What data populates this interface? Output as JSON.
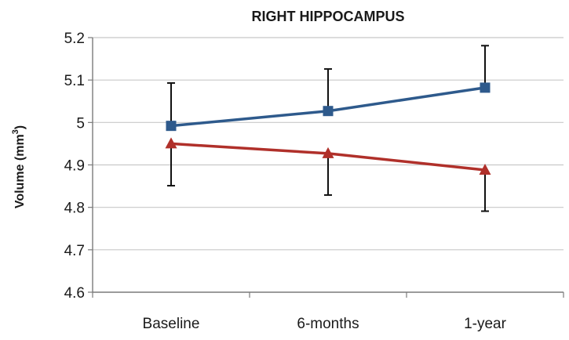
{
  "chart_data": {
    "type": "line",
    "title": "RIGHT HIPPOCAMPUS",
    "ylabel_text": "Volume (mm",
    "ylabel_superscript": "3",
    "ylabel_suffix": ")",
    "xlabel": "",
    "categories": [
      "Baseline",
      "6-months",
      "1-year"
    ],
    "ylim": [
      4.6,
      5.2
    ],
    "y_ticks": [
      4.6,
      4.7,
      4.8,
      4.9,
      5.0,
      5.1,
      5.2
    ],
    "y_tick_labels": [
      "4.6",
      "4.7",
      "4.8",
      "4.9",
      "5",
      "5.1",
      "5.2"
    ],
    "grid": true,
    "legend": "none",
    "series": [
      {
        "marker": "square",
        "color": "#2e5a8c",
        "values": [
          4.992,
          5.027,
          5.082
        ],
        "error_upper": [
          5.093,
          5.126,
          5.181
        ],
        "error_lower": null
      },
      {
        "marker": "triangle",
        "color": "#b0302a",
        "values": [
          4.95,
          4.927,
          4.888
        ],
        "error_upper": null,
        "error_lower": [
          4.851,
          4.829,
          4.791
        ]
      }
    ]
  }
}
